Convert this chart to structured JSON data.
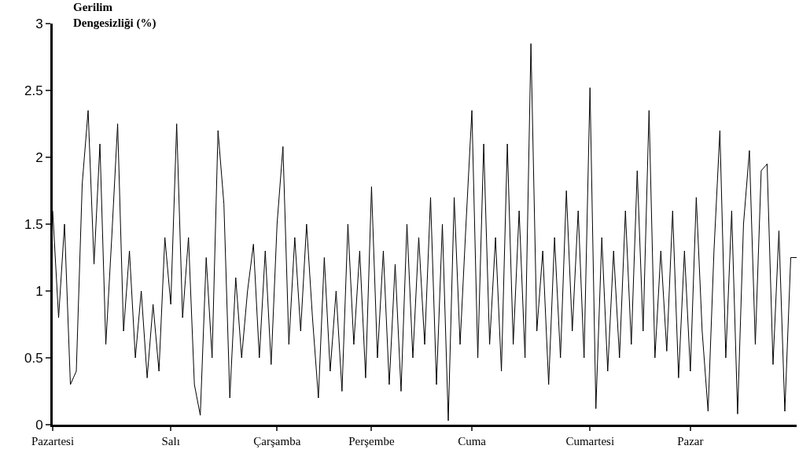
{
  "chart_data": {
    "type": "line",
    "ylabel": "Gerilim Dengesizliği (%)",
    "categories": [
      "Pazartesi",
      null,
      null,
      null,
      null,
      null,
      null,
      null,
      null,
      null,
      null,
      null,
      null,
      null,
      null,
      null,
      null,
      null,
      null,
      null,
      "Salı",
      null,
      null,
      null,
      null,
      null,
      null,
      null,
      null,
      null,
      null,
      null,
      null,
      null,
      null,
      null,
      null,
      null,
      "Çarşamba",
      null,
      null,
      null,
      null,
      null,
      null,
      null,
      null,
      null,
      null,
      null,
      null,
      null,
      null,
      null,
      "Perşembe",
      null,
      null,
      null,
      null,
      null,
      null,
      null,
      null,
      null,
      null,
      null,
      null,
      null,
      null,
      null,
      null,
      "Cuma",
      null,
      null,
      null,
      null,
      null,
      null,
      null,
      null,
      null,
      null,
      null,
      null,
      null,
      null,
      null,
      null,
      null,
      null,
      null,
      "Cumartesi",
      null,
      null,
      null,
      null,
      null,
      null,
      null,
      null,
      null,
      null,
      null,
      null,
      null,
      null,
      null,
      null,
      "Pazar",
      null,
      null,
      null,
      null,
      null,
      null,
      null,
      null,
      null,
      null,
      null,
      null,
      null,
      null,
      null,
      null,
      null,
      null
    ],
    "series": [
      {
        "color": "#000000",
        "values": [
          1.6,
          0.8,
          1.5,
          0.3,
          0.4,
          1.8,
          2.35,
          1.2,
          2.1,
          0.6,
          1.4,
          2.25,
          0.7,
          1.3,
          0.5,
          1.0,
          0.35,
          0.9,
          0.4,
          1.4,
          0.9,
          2.25,
          0.8,
          1.4,
          0.3,
          0.07,
          1.25,
          0.5,
          2.2,
          1.65,
          0.2,
          1.1,
          0.5,
          1.0,
          1.35,
          0.5,
          1.3,
          0.45,
          1.5,
          2.08,
          0.6,
          1.4,
          0.7,
          1.5,
          0.8,
          0.2,
          1.25,
          0.4,
          1.0,
          0.25,
          1.5,
          0.6,
          1.3,
          0.35,
          1.78,
          0.5,
          1.3,
          0.3,
          1.2,
          0.25,
          1.5,
          0.5,
          1.4,
          0.6,
          1.7,
          0.3,
          1.5,
          0.03,
          1.7,
          0.6,
          1.5,
          2.35,
          0.5,
          2.1,
          0.6,
          1.4,
          0.4,
          2.1,
          0.6,
          1.6,
          0.5,
          2.85,
          0.7,
          1.3,
          0.3,
          1.4,
          0.5,
          1.75,
          0.7,
          1.6,
          0.5,
          2.52,
          0.12,
          1.4,
          0.4,
          1.3,
          0.5,
          1.6,
          0.6,
          1.9,
          0.7,
          2.35,
          0.5,
          1.3,
          0.55,
          1.6,
          0.35,
          1.3,
          0.4,
          1.7,
          0.7,
          0.1,
          1.3,
          2.2,
          0.5,
          1.6,
          0.08,
          1.5,
          2.05,
          0.6,
          1.9,
          1.95,
          0.45,
          1.45,
          0.1,
          1.25,
          1.25
        ]
      }
    ],
    "ylim": [
      0,
      3
    ],
    "yticks": [
      0,
      0.5,
      1,
      1.5,
      2,
      2.5,
      3
    ],
    "grid": false,
    "legend": false,
    "marker": "none",
    "line_style": "solid"
  }
}
